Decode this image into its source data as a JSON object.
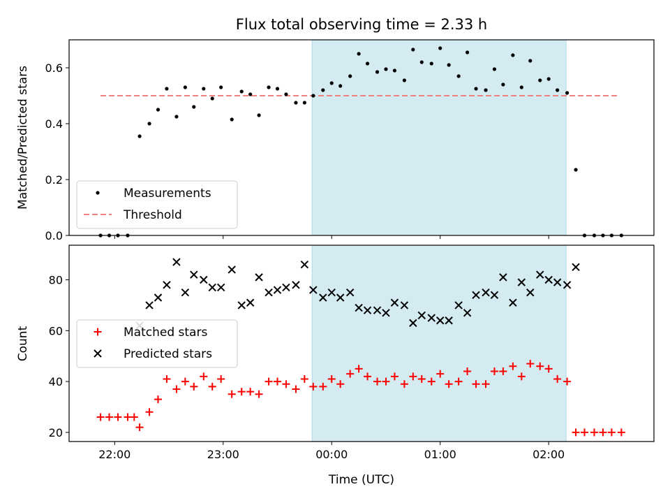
{
  "chart_data": {
    "title": "Flux total observing time = 2.33 h",
    "xlabel": "Time (UTC)",
    "x_tick_labels": [
      "22:00",
      "23:00",
      "00:00",
      "01:00",
      "02:00"
    ],
    "x_ticks_hours": [
      22,
      23,
      24,
      25,
      26
    ],
    "xlim_hours": [
      21.58,
      26.97
    ],
    "shaded_region_hours": [
      23.82,
      26.16
    ],
    "shade_color": "#add8e6",
    "panels": [
      {
        "type": "scatter",
        "ylabel": "Matched/Predicted stars",
        "ylim": [
          0,
          0.7
        ],
        "y_ticks": [
          0.0,
          0.2,
          0.4,
          0.6
        ],
        "y_tick_labels": [
          "0.0",
          "0.2",
          "0.4",
          "0.6"
        ],
        "legend_position": "lower-left",
        "threshold": {
          "name": "Threshold",
          "value": 0.5,
          "x_range_hours": [
            21.87,
            26.65
          ],
          "color": "#f08080"
        },
        "series": [
          {
            "name": "Measurements",
            "marker": "dot",
            "color": "#000000",
            "points": [
              [
                21.87,
                0.0
              ],
              [
                21.95,
                0.0
              ],
              [
                22.03,
                0.0
              ],
              [
                22.12,
                0.0
              ],
              [
                22.23,
                0.355
              ],
              [
                22.32,
                0.4
              ],
              [
                22.4,
                0.45
              ],
              [
                22.48,
                0.525
              ],
              [
                22.57,
                0.425
              ],
              [
                22.65,
                0.53
              ],
              [
                22.73,
                0.46
              ],
              [
                22.82,
                0.525
              ],
              [
                22.9,
                0.49
              ],
              [
                22.98,
                0.53
              ],
              [
                23.08,
                0.415
              ],
              [
                23.17,
                0.515
              ],
              [
                23.25,
                0.505
              ],
              [
                23.33,
                0.43
              ],
              [
                23.42,
                0.53
              ],
              [
                23.5,
                0.525
              ],
              [
                23.58,
                0.505
              ],
              [
                23.67,
                0.475
              ],
              [
                23.75,
                0.475
              ],
              [
                23.83,
                0.5
              ],
              [
                23.92,
                0.52
              ],
              [
                24.0,
                0.545
              ],
              [
                24.08,
                0.535
              ],
              [
                24.17,
                0.57
              ],
              [
                24.25,
                0.65
              ],
              [
                24.33,
                0.615
              ],
              [
                24.42,
                0.585
              ],
              [
                24.5,
                0.595
              ],
              [
                24.58,
                0.59
              ],
              [
                24.67,
                0.555
              ],
              [
                24.75,
                0.665
              ],
              [
                24.83,
                0.62
              ],
              [
                24.92,
                0.615
              ],
              [
                25.0,
                0.67
              ],
              [
                25.08,
                0.61
              ],
              [
                25.17,
                0.57
              ],
              [
                25.25,
                0.655
              ],
              [
                25.33,
                0.525
              ],
              [
                25.42,
                0.52
              ],
              [
                25.5,
                0.595
              ],
              [
                25.58,
                0.54
              ],
              [
                25.67,
                0.645
              ],
              [
                25.75,
                0.53
              ],
              [
                25.83,
                0.625
              ],
              [
                25.92,
                0.555
              ],
              [
                26.0,
                0.56
              ],
              [
                26.08,
                0.52
              ],
              [
                26.17,
                0.51
              ],
              [
                26.25,
                0.235
              ],
              [
                26.33,
                0.0
              ],
              [
                26.42,
                0.0
              ],
              [
                26.5,
                0.0
              ],
              [
                26.58,
                0.0
              ],
              [
                26.67,
                0.0
              ]
            ]
          }
        ]
      },
      {
        "type": "scatter",
        "ylabel": "Count",
        "ylim": [
          16.4,
          93.6
        ],
        "y_ticks": [
          20,
          40,
          60,
          80
        ],
        "y_tick_labels": [
          "20",
          "40",
          "60",
          "80"
        ],
        "legend_position": "center-left",
        "series": [
          {
            "name": "Matched stars",
            "marker": "plus",
            "color": "#ff0000",
            "points": [
              [
                21.87,
                26
              ],
              [
                21.95,
                26
              ],
              [
                22.03,
                26
              ],
              [
                22.12,
                26
              ],
              [
                22.18,
                26
              ],
              [
                22.23,
                22
              ],
              [
                22.32,
                28
              ],
              [
                22.4,
                33
              ],
              [
                22.48,
                41
              ],
              [
                22.57,
                37
              ],
              [
                22.65,
                40
              ],
              [
                22.73,
                38
              ],
              [
                22.82,
                42
              ],
              [
                22.9,
                38
              ],
              [
                22.98,
                41
              ],
              [
                23.08,
                35
              ],
              [
                23.17,
                36
              ],
              [
                23.25,
                36
              ],
              [
                23.33,
                35
              ],
              [
                23.42,
                40
              ],
              [
                23.5,
                40
              ],
              [
                23.58,
                39
              ],
              [
                23.67,
                37
              ],
              [
                23.75,
                41
              ],
              [
                23.83,
                38
              ],
              [
                23.92,
                38
              ],
              [
                24.0,
                41
              ],
              [
                24.08,
                39
              ],
              [
                24.17,
                43
              ],
              [
                24.25,
                45
              ],
              [
                24.33,
                42
              ],
              [
                24.42,
                40
              ],
              [
                24.5,
                40
              ],
              [
                24.58,
                42
              ],
              [
                24.67,
                39
              ],
              [
                24.75,
                42
              ],
              [
                24.83,
                41
              ],
              [
                24.92,
                40
              ],
              [
                25.0,
                43
              ],
              [
                25.08,
                39
              ],
              [
                25.17,
                40
              ],
              [
                25.25,
                44
              ],
              [
                25.33,
                39
              ],
              [
                25.42,
                39
              ],
              [
                25.5,
                44
              ],
              [
                25.58,
                44
              ],
              [
                25.67,
                46
              ],
              [
                25.75,
                42
              ],
              [
                25.83,
                47
              ],
              [
                25.92,
                46
              ],
              [
                26.0,
                45
              ],
              [
                26.08,
                41
              ],
              [
                26.17,
                40
              ],
              [
                26.25,
                20
              ],
              [
                26.33,
                20
              ],
              [
                26.42,
                20
              ],
              [
                26.5,
                20
              ],
              [
                26.58,
                20
              ],
              [
                26.67,
                20
              ]
            ]
          },
          {
            "name": "Predicted stars",
            "marker": "cross",
            "color": "#000000",
            "points": [
              [
                22.23,
                62
              ],
              [
                22.32,
                70
              ],
              [
                22.4,
                73
              ],
              [
                22.48,
                78
              ],
              [
                22.57,
                87
              ],
              [
                22.65,
                75
              ],
              [
                22.73,
                82
              ],
              [
                22.82,
                80
              ],
              [
                22.9,
                77
              ],
              [
                22.98,
                77
              ],
              [
                23.08,
                84
              ],
              [
                23.17,
                70
              ],
              [
                23.25,
                71
              ],
              [
                23.33,
                81
              ],
              [
                23.42,
                75
              ],
              [
                23.5,
                76
              ],
              [
                23.58,
                77
              ],
              [
                23.67,
                78
              ],
              [
                23.75,
                86
              ],
              [
                23.83,
                76
              ],
              [
                23.92,
                73
              ],
              [
                24.0,
                75
              ],
              [
                24.08,
                73
              ],
              [
                24.17,
                75
              ],
              [
                24.25,
                69
              ],
              [
                24.33,
                68
              ],
              [
                24.42,
                68
              ],
              [
                24.5,
                67
              ],
              [
                24.58,
                71
              ],
              [
                24.67,
                70
              ],
              [
                24.75,
                63
              ],
              [
                24.83,
                66
              ],
              [
                24.92,
                65
              ],
              [
                25.0,
                64
              ],
              [
                25.08,
                64
              ],
              [
                25.17,
                70
              ],
              [
                25.25,
                67
              ],
              [
                25.33,
                74
              ],
              [
                25.42,
                75
              ],
              [
                25.5,
                74
              ],
              [
                25.58,
                81
              ],
              [
                25.67,
                71
              ],
              [
                25.75,
                79
              ],
              [
                25.83,
                75
              ],
              [
                25.92,
                82
              ],
              [
                26.0,
                80
              ],
              [
                26.08,
                79
              ],
              [
                26.17,
                78
              ],
              [
                26.25,
                85
              ]
            ]
          }
        ]
      }
    ]
  }
}
